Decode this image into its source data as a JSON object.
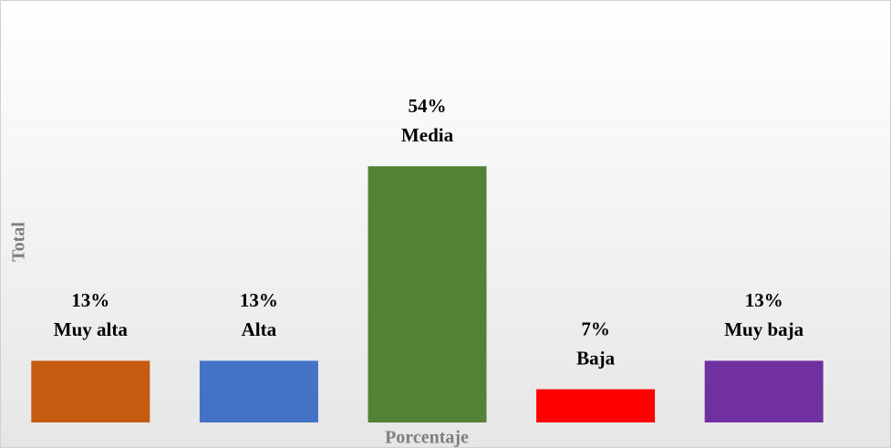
{
  "chart_data": {
    "type": "bar",
    "categories": [
      "Muy alta",
      "Alta",
      "Media",
      "Baja",
      "Muy baja"
    ],
    "values": [
      13,
      13,
      54,
      7,
      13
    ],
    "value_labels": [
      "13%",
      "13%",
      "54%",
      "7%",
      "13%"
    ],
    "colors": [
      "#c55a11",
      "#4472c4",
      "#548235",
      "#ff0000",
      "#7030a0"
    ],
    "ylim": [
      0,
      80
    ],
    "x_label": "Porcentaje",
    "y_label": "Total"
  }
}
